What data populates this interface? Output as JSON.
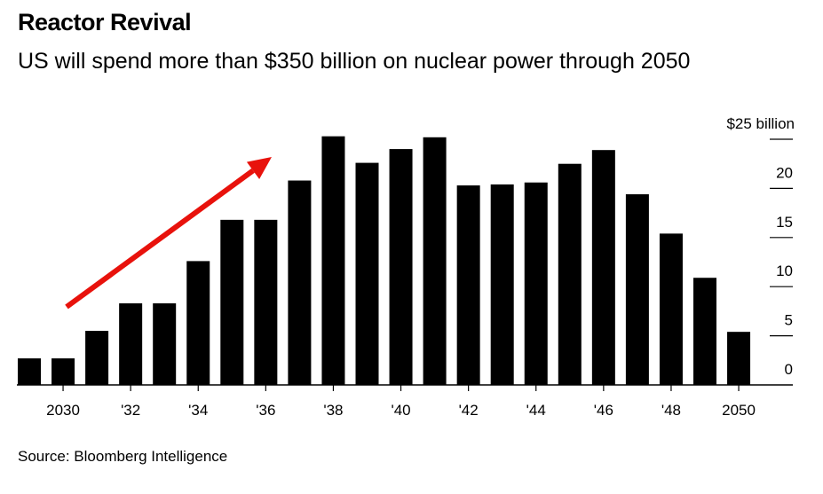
{
  "title": "Reactor Revival",
  "subtitle": "US will spend more than $350 billion on nuclear power through 2050",
  "source": "Source: Bloomberg Intelligence",
  "chart_data": {
    "type": "bar",
    "title": "Reactor Revival",
    "subtitle": "US will spend more than $350 billion on nuclear power through 2050",
    "x": [
      2029,
      2030,
      2031,
      2032,
      2033,
      2034,
      2035,
      2036,
      2037,
      2038,
      2039,
      2040,
      2041,
      2042,
      2043,
      2044,
      2045,
      2046,
      2047,
      2048,
      2049,
      2050
    ],
    "values": [
      2.7,
      2.7,
      5.5,
      8.3,
      8.3,
      12.6,
      16.8,
      16.8,
      20.8,
      25.3,
      22.6,
      24.0,
      25.2,
      20.3,
      20.4,
      20.6,
      22.5,
      23.9,
      19.4,
      15.4,
      10.9,
      5.4
    ],
    "x_tick_labels": [
      {
        "x": 2030,
        "label": "2030"
      },
      {
        "x": 2032,
        "label": "'32"
      },
      {
        "x": 2034,
        "label": "'34"
      },
      {
        "x": 2036,
        "label": "'36"
      },
      {
        "x": 2038,
        "label": "'38"
      },
      {
        "x": 2040,
        "label": "'40"
      },
      {
        "x": 2042,
        "label": "'42"
      },
      {
        "x": 2044,
        "label": "'44"
      },
      {
        "x": 2046,
        "label": "'46"
      },
      {
        "x": 2048,
        "label": "'48"
      },
      {
        "x": 2050,
        "label": "2050"
      }
    ],
    "y_tick_labels": [
      {
        "value": 0,
        "label": "0"
      },
      {
        "value": 5,
        "label": "5"
      },
      {
        "value": 10,
        "label": "10"
      },
      {
        "value": 15,
        "label": "15"
      },
      {
        "value": 20,
        "label": "20"
      },
      {
        "value": 25,
        "label": "$25 billion"
      }
    ],
    "ylim": [
      0,
      25
    ],
    "y_axis_side": "right",
    "bar_color": "#000000",
    "annotation": {
      "type": "arrow",
      "direction": "up-right",
      "color": "#e8120c"
    },
    "grid": false
  }
}
